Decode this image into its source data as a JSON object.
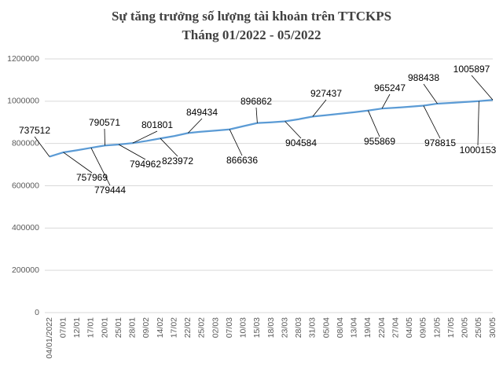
{
  "chart_data": {
    "type": "line",
    "title": "Sự tăng trưởng số lượng tài khoản trên TTCKPS",
    "subtitle": "Tháng 01/2022 - 05/2022",
    "categories": [
      "04/01/2022",
      "07/01",
      "12/01",
      "17/01",
      "20/01",
      "25/01",
      "28/01",
      "09/02",
      "14/02",
      "17/02",
      "22/02",
      "25/02",
      "02/03",
      "07/03",
      "10/03",
      "15/03",
      "18/03",
      "23/03",
      "28/03",
      "31/03",
      "05/04",
      "08/04",
      "13/04",
      "19/04",
      "22/04",
      "27/04",
      "04/05",
      "09/05",
      "12/05",
      "17/05",
      "20/05",
      "25/05",
      "30/05"
    ],
    "series": [
      {
        "name": "Số lượng tài khoản",
        "color": "#5b9bd5",
        "values": [
          737512,
          757969,
          768000,
          779444,
          790571,
          794962,
          801801,
          812000,
          823972,
          835000,
          849434,
          856000,
          861000,
          866636,
          882000,
          896862,
          900000,
          904584,
          915000,
          927437,
          934000,
          941000,
          948000,
          955869,
          965247,
          969000,
          974000,
          978815,
          988438,
          992000,
          996000,
          1000153,
          1005897
        ],
        "value_labels": [
          "737512",
          "757969",
          null,
          "779444",
          "790571",
          "794962",
          "801801",
          null,
          "823972",
          null,
          "849434",
          null,
          null,
          "866636",
          null,
          "896862",
          null,
          "904584",
          null,
          "927437",
          null,
          null,
          null,
          "955869",
          "965247",
          null,
          null,
          "978815",
          "988438",
          null,
          null,
          "1000153",
          "1005897"
        ]
      }
    ],
    "ylim": [
      0,
      1200000
    ],
    "yticks": [
      0,
      200000,
      400000,
      600000,
      800000,
      1000000,
      1200000
    ],
    "grid": true
  }
}
